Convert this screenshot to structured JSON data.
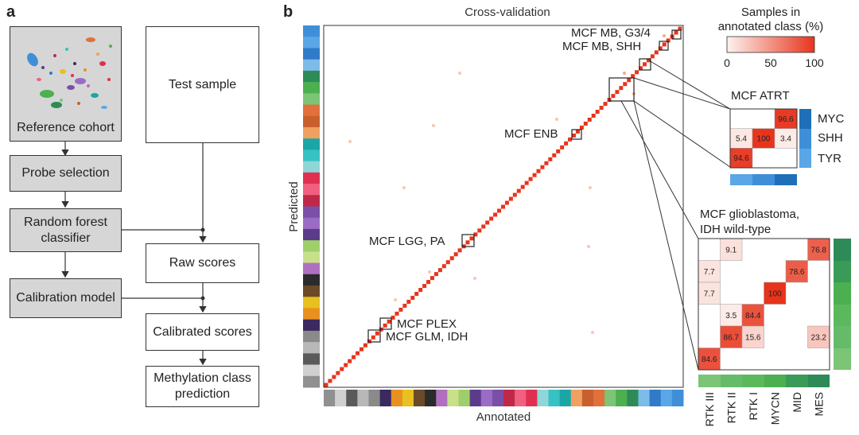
{
  "panel_a": {
    "label": "a",
    "reference_cohort": "Reference cohort",
    "probe_selection": "Probe selection",
    "random_forest": "Random forest\nclassifier",
    "calibration_model": "Calibration model",
    "test_sample": "Test sample",
    "raw_scores": "Raw scores",
    "calibrated_scores": "Calibrated scores",
    "methylation_prediction": "Methylation class\nprediction"
  },
  "panel_b": {
    "label": "b",
    "title": "Cross-validation",
    "ylabel": "Predicted",
    "xlabel": "Annotated",
    "callouts": {
      "mb_g34": "MCF MB, G3/4",
      "mb_shh": "MCF MB, SHH",
      "enb": "MCF ENB",
      "lgg": "MCF LGG, PA",
      "plex": "MCF PLEX",
      "glm": "MCF GLM, IDH"
    },
    "colorbar": {
      "title_line1": "Samples in",
      "title_line2": "annotated class (%)",
      "ticks": [
        "0",
        "50",
        "100"
      ],
      "low_color": "#fdf2ee",
      "high_color": "#e8341c"
    },
    "atrt": {
      "title": "MCF ATRT",
      "row_labels": [
        "MYC",
        "SHH",
        "TYR"
      ],
      "cells": [
        {
          "r": 0,
          "c": 2,
          "value": 96.6
        },
        {
          "r": 1,
          "c": 0,
          "value": 5.4
        },
        {
          "r": 1,
          "c": 1,
          "value": 100
        },
        {
          "r": 1,
          "c": 2,
          "value": 3.4
        },
        {
          "r": 2,
          "c": 0,
          "value": 94.6
        }
      ]
    },
    "gbm": {
      "title_line1": "MCF glioblastoma,",
      "title_line2": "IDH wild-type",
      "col_labels": [
        "RTK III",
        "RTK II",
        "RTK I",
        "MYCN",
        "MID",
        "MES"
      ],
      "cells": [
        {
          "r": 0,
          "c": 1,
          "value": 9.1
        },
        {
          "r": 0,
          "c": 5,
          "value": 76.8
        },
        {
          "r": 1,
          "c": 0,
          "value": 7.7
        },
        {
          "r": 1,
          "c": 4,
          "value": 78.6
        },
        {
          "r": 2,
          "c": 0,
          "value": 7.7
        },
        {
          "r": 2,
          "c": 3,
          "value": 100
        },
        {
          "r": 3,
          "c": 1,
          "value": 3.5
        },
        {
          "r": 3,
          "c": 2,
          "value": 84.4
        },
        {
          "r": 4,
          "c": 1,
          "value": 86.7
        },
        {
          "r": 4,
          "c": 2,
          "value": 15.6
        },
        {
          "r": 4,
          "c": 5,
          "value": 23.2
        },
        {
          "r": 5,
          "c": 0,
          "value": 84.6
        }
      ]
    },
    "class_colors": [
      "#3f8fd8",
      "#5aa6e6",
      "#2f7bc8",
      "#7dbbe8",
      "#2e8b57",
      "#4caf50",
      "#7cc576",
      "#e0713a",
      "#c8602e",
      "#f0a060",
      "#1aa6a6",
      "#36c2c2",
      "#8fd6d6",
      "#e03050",
      "#f06080",
      "#c02848",
      "#7b4fa8",
      "#9a6cc6",
      "#5b3c8a",
      "#9fcf6a",
      "#c8e08a",
      "#b070c0",
      "#2b2b2b",
      "#6b4a2a",
      "#e8c020",
      "#e89020",
      "#3a2a60",
      "#8a8a8a",
      "#b8b8b8",
      "#5a5a5a",
      "#d0d0d0",
      "#909090"
    ]
  }
}
